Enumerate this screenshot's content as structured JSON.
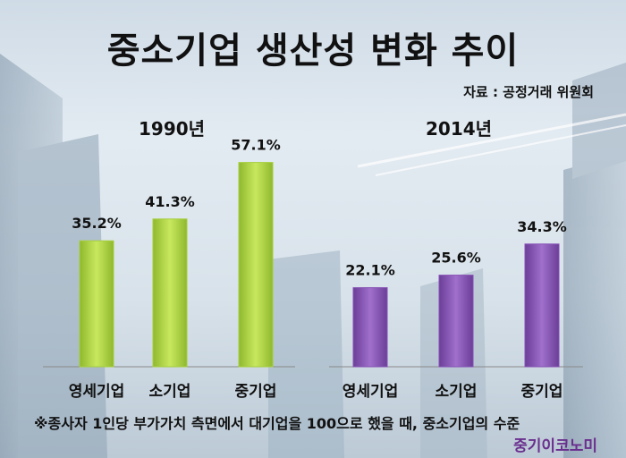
{
  "chart_data": {
    "type": "bar",
    "title": "중소기업 생산성 변화 추이",
    "source": "자료 : 공정거래 위원회",
    "footnote": "※종사자 1인당 부가가치 측면에서 대기업을 100으로 했을 때, 중소기업의 수준",
    "brand": "중기이코노미",
    "categories": [
      "영세기업",
      "소기업",
      "중기업"
    ],
    "ylim": [
      0,
      70
    ],
    "groups": [
      {
        "label": "1990년",
        "color": "#a6cf3c",
        "values": [
          35.2,
          41.3,
          57.1
        ],
        "value_labels": [
          "35.2%",
          "41.3%",
          "57.1%"
        ]
      },
      {
        "label": "2014년",
        "color": "#8550b5",
        "values": [
          22.1,
          25.6,
          34.3
        ],
        "value_labels": [
          "22.1%",
          "25.6%",
          "34.3%"
        ]
      }
    ]
  }
}
